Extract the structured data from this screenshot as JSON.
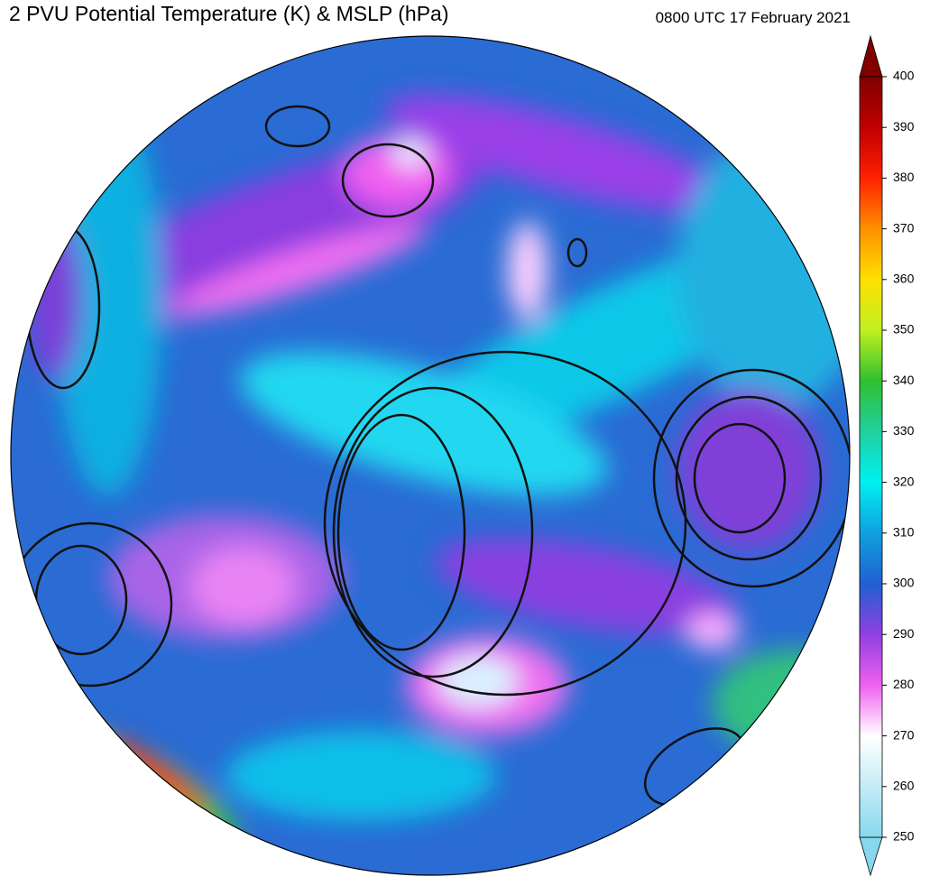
{
  "title": "2 PVU Potential Temperature (K) & MSLP (hPa)",
  "timestamp": "0800 UTC 17 February 2021",
  "colorbar": {
    "range": [
      250,
      400
    ],
    "ticks": [
      250,
      260,
      270,
      280,
      290,
      300,
      310,
      320,
      330,
      340,
      350,
      360,
      370,
      380,
      390,
      400
    ]
  }
}
